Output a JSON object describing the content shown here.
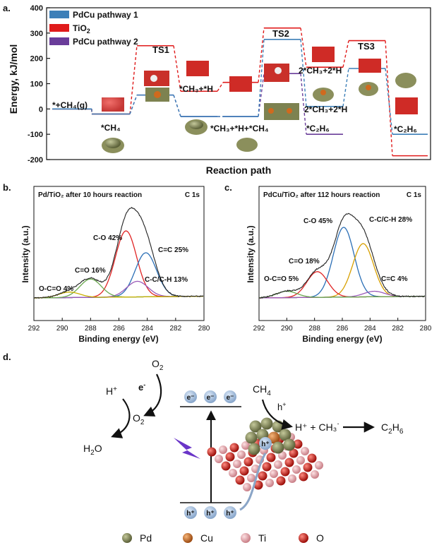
{
  "panel_labels": {
    "a": "a.",
    "b": "b.",
    "c": "c.",
    "d": "d."
  },
  "chart_data": [
    {
      "type": "line",
      "title": "",
      "xlabel": "Reaction path",
      "ylabel": "Energy, kJ/mol",
      "ylim": [
        -200,
        400
      ],
      "yticks": [
        "400",
        "300",
        "200",
        "100",
        "0",
        "-100",
        "-200"
      ],
      "grid": false,
      "legend_position": "top-left",
      "legend": [
        {
          "name": "PdCu pathway 1",
          "color": "#3c7fb8"
        },
        {
          "name": "TiO",
          "sub": "2",
          "color": "#e01b1b"
        },
        {
          "name": "PdCu pathway 2",
          "color": "#6a3d9a"
        }
      ],
      "series": [
        {
          "name": "PdCu pathway 1",
          "color": "#3c7fb8",
          "energies": [
            0,
            -20,
            55,
            -30,
            -30,
            275,
            10,
            160,
            -100
          ]
        },
        {
          "name": "TiO2",
          "color": "#e01b1b",
          "energies": [
            0,
            -20,
            250,
            70,
            105,
            320,
            165,
            270,
            -185
          ]
        },
        {
          "name": "PdCu pathway 2",
          "color": "#6a3d9a",
          "energies": [
            0,
            -20,
            55,
            -30,
            -30,
            140,
            -100
          ]
        }
      ],
      "annotations": {
        "ch4_gas": "*+CH₄(g)",
        "ch4_ads": "*CH₄",
        "ts1": "TS1",
        "ch3_h": "*CH₃+*H",
        "ch3_h_ch4": "*CH₃+*H+*CH₄",
        "ts2": "TS2",
        "two_ch3_h_top": "2*CH₃+2*H",
        "two_ch3_h_bottom": "2*CH₃+2*H",
        "c2h6_mid": "*C₂H₆",
        "ts3": "TS3",
        "c2h6_end": "*C₂H₆"
      }
    },
    {
      "type": "line",
      "title": "Pd/TiO₂ after 10 hours reaction",
      "corner_label": "C 1s",
      "xlabel": "Binding energy (eV)",
      "ylabel": "Intensity (a.u.)",
      "xlim": [
        292,
        280
      ],
      "xticks": [
        "292",
        "290",
        "288",
        "286",
        "284",
        "282",
        "280"
      ],
      "peaks": [
        {
          "name": "C-O 42%",
          "center": 285.5,
          "height": 0.72,
          "color": "#e02424"
        },
        {
          "name": "C=C 25%",
          "center": 284.1,
          "height": 0.48,
          "color": "#2b6fb6"
        },
        {
          "name": "C-C/C-H 13%",
          "center": 284.7,
          "height": 0.17,
          "color": "#9a5ab8"
        },
        {
          "name": "C=O 16%",
          "center": 288.0,
          "height": 0.2,
          "color": "#6aa84f"
        },
        {
          "name": "O-C=O 4%",
          "center": 289.5,
          "height": 0.06,
          "color": "#c9b000"
        }
      ]
    },
    {
      "type": "line",
      "title": "PdCu/TiO₂ after 112 hours reaction",
      "corner_label": "C 1s",
      "xlabel": "Binding energy (eV)",
      "ylabel": "Intensity (a.u.)",
      "xlim": [
        292,
        280
      ],
      "xticks": [
        "292",
        "290",
        "288",
        "286",
        "284",
        "282",
        "280"
      ],
      "peaks": [
        {
          "name": "C-O 45%",
          "center": 285.9,
          "height": 0.76,
          "color": "#2b6fb6"
        },
        {
          "name": "C-C/C-H 28%",
          "center": 284.5,
          "height": 0.58,
          "color": "#d8a000"
        },
        {
          "name": "C=O 18%",
          "center": 287.8,
          "height": 0.28,
          "color": "#e02424"
        },
        {
          "name": "C=C 4%",
          "center": 283.7,
          "height": 0.06,
          "color": "#9a5ab8"
        },
        {
          "name": "O-C=O 5%",
          "center": 290.0,
          "height": 0.07,
          "color": "#6aa84f"
        }
      ]
    }
  ],
  "scheme": {
    "o2": "O",
    "o2_sub": "2",
    "e_minus": "e",
    "e_sup": "-",
    "o2_minus": "O",
    "o2_minus_sub": "2",
    "o2_minus_sup": "-",
    "h_plus": "H",
    "h_plus_sup": "+",
    "h2o_a": "H",
    "h2o_sub": "2",
    "h2o_b": "O",
    "ch4": "CH",
    "ch4_sub": "4",
    "h_hole": "h",
    "h_hole_sup": "+",
    "product_eq": "H⁺ + CH₃˙",
    "c2h6": "C",
    "c2h6_sub": "2",
    "c2h6_h": "H",
    "c2h6_sub2": "6",
    "electron": "e⁻",
    "hole": "h⁺"
  },
  "atom_legend": [
    {
      "label": "Pd",
      "color": "#7d8250"
    },
    {
      "label": "Cu",
      "color": "#d06a1e"
    },
    {
      "label": "Ti",
      "color": "#eaa7ad"
    },
    {
      "label": "O",
      "color": "#d0201a"
    }
  ]
}
